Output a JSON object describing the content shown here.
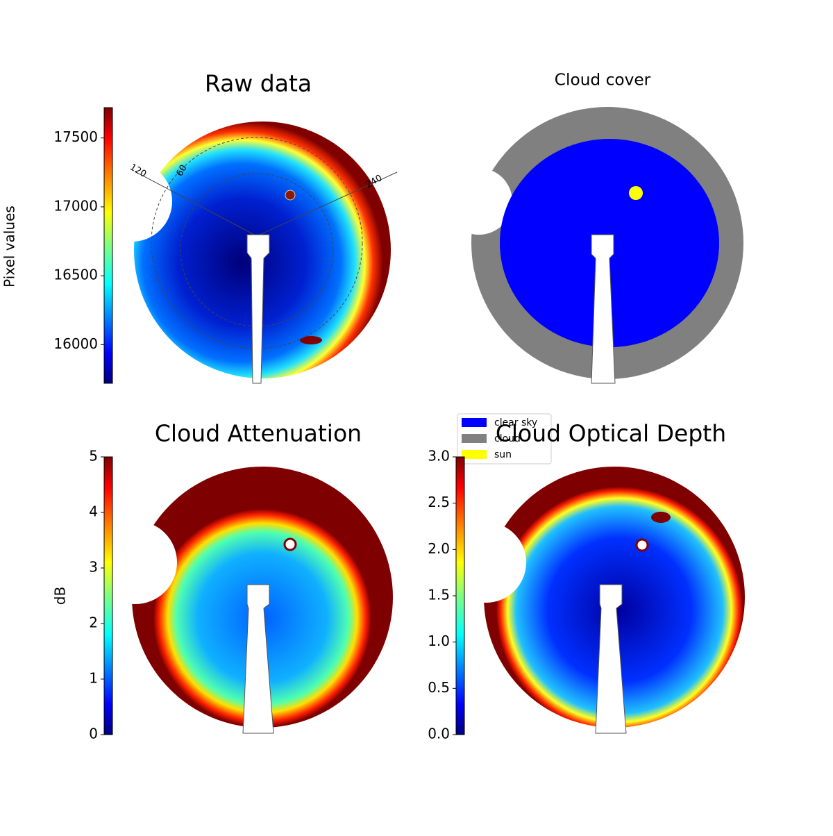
{
  "chart_data": [
    {
      "type": "image",
      "title": "Raw data",
      "colorbar": {
        "label": "Pixel values",
        "lim": [
          15720,
          17720
        ],
        "ticks": [
          16000,
          16500,
          17000,
          17500
        ]
      },
      "annotations": [
        "120",
        "60",
        "240"
      ]
    },
    {
      "type": "image",
      "title": "Cloud cover",
      "legend": [
        {
          "name": "clear sky",
          "color": "#0000ff"
        },
        {
          "name": "cloud",
          "color": "#808080"
        },
        {
          "name": "sun",
          "color": "#ffff00"
        }
      ]
    },
    {
      "type": "image",
      "title": "Cloud Attenuation",
      "colorbar": {
        "label": "dB",
        "lim": [
          0,
          5
        ],
        "ticks": [
          0,
          1,
          2,
          3,
          4,
          5
        ]
      }
    },
    {
      "type": "image",
      "title": "Cloud Optical Depth",
      "colorbar": {
        "lim": [
          0,
          3
        ],
        "ticks": [
          {
            "value": 0,
            "label": "0.0"
          },
          0.5,
          {
            "value": 1,
            "label": "1.0"
          },
          1.5,
          {
            "value": 2,
            "label": "2.0"
          },
          2.5,
          {
            "value": 3,
            "label": "3.0"
          }
        ]
      }
    }
  ]
}
